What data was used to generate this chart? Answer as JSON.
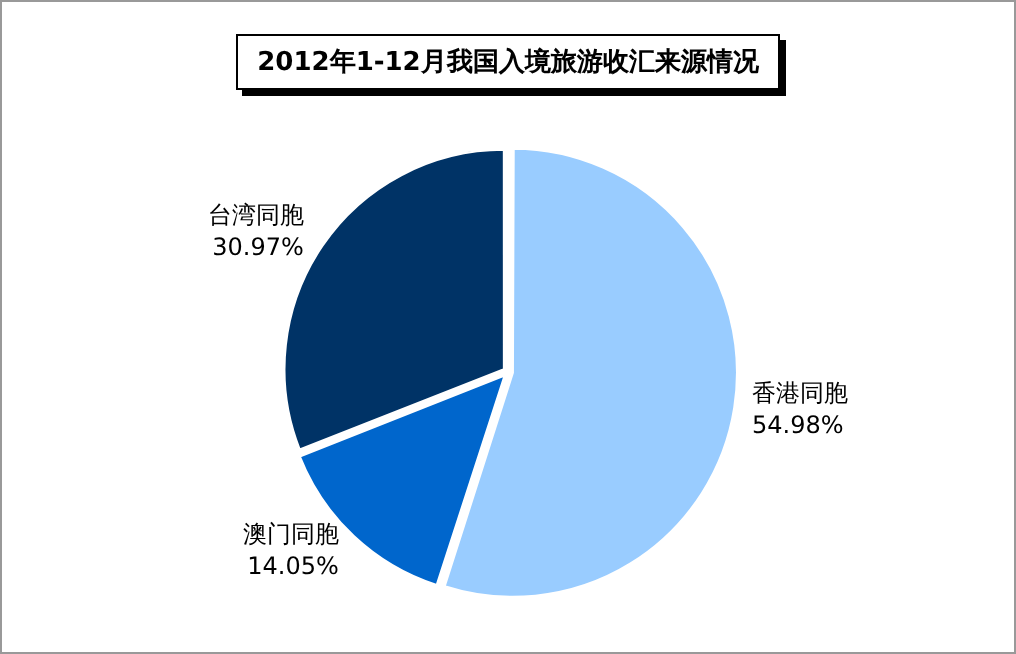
{
  "chart_data": {
    "type": "pie",
    "title": "2012年1-12月我国入境旅游收汇来源情况",
    "categories": [
      "香港同胞",
      "澳门同胞",
      "台湾同胞"
    ],
    "values": [
      54.98,
      14.05,
      30.97
    ],
    "value_labels": [
      "54.98%",
      "14.05%",
      "30.97%"
    ],
    "colors": [
      "#99ccff",
      "#0066cc",
      "#003366"
    ],
    "legend": false
  }
}
